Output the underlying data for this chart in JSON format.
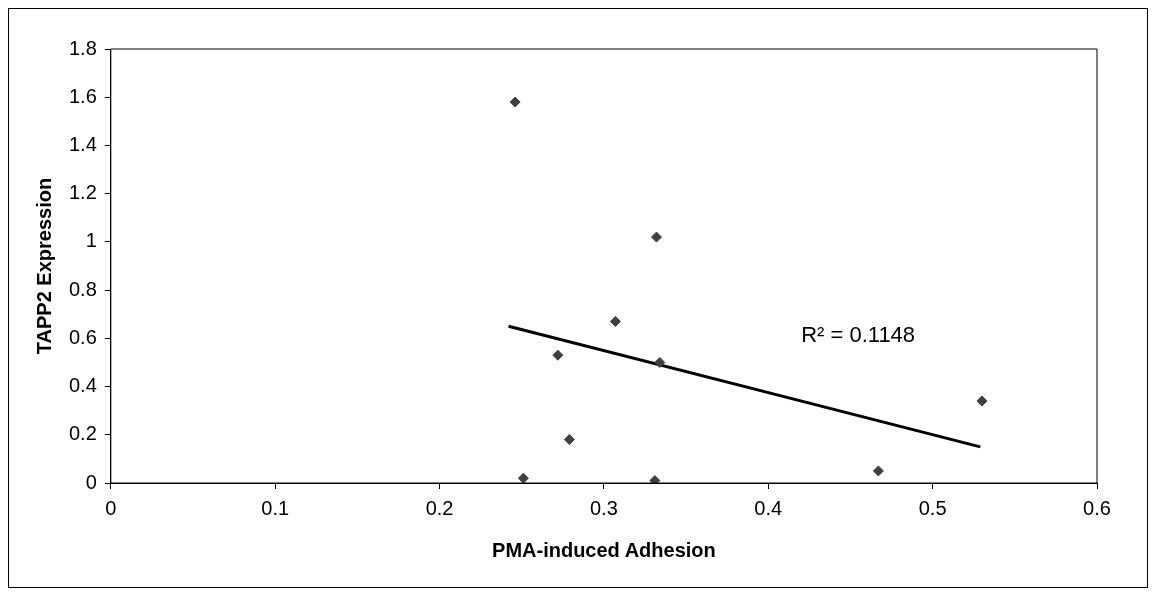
{
  "chart_data": {
    "type": "scatter",
    "xlabel": "PMA-induced Adhesion",
    "ylabel": "TAPP2 Expression",
    "xlim": [
      0,
      0.6
    ],
    "xticks": [
      0,
      0.1,
      0.2,
      0.3,
      0.4,
      0.5,
      0.6
    ],
    "ylim": [
      0,
      1.8
    ],
    "yticks": [
      0,
      0.2,
      0.4,
      0.6,
      0.8,
      1,
      1.2,
      1.4,
      1.6,
      1.8
    ],
    "grid": false,
    "legend": false,
    "marker": "diamond",
    "series": [
      {
        "type": "scatter",
        "color": "#404040",
        "x": [
          0.246,
          0.251,
          0.272,
          0.279,
          0.307,
          0.332,
          0.334,
          0.331,
          0.467,
          0.53
        ],
        "values": [
          1.58,
          0.02,
          0.53,
          0.18,
          0.67,
          1.02,
          0.5,
          0.01,
          0.05,
          0.34
        ]
      },
      {
        "type": "line",
        "color": "#000000",
        "x": [
          0.242,
          0.529
        ],
        "values": [
          0.65,
          0.15
        ],
        "marker": "none",
        "line_style": "solid"
      }
    ],
    "annotations": [
      "R² = 0.1148"
    ]
  }
}
